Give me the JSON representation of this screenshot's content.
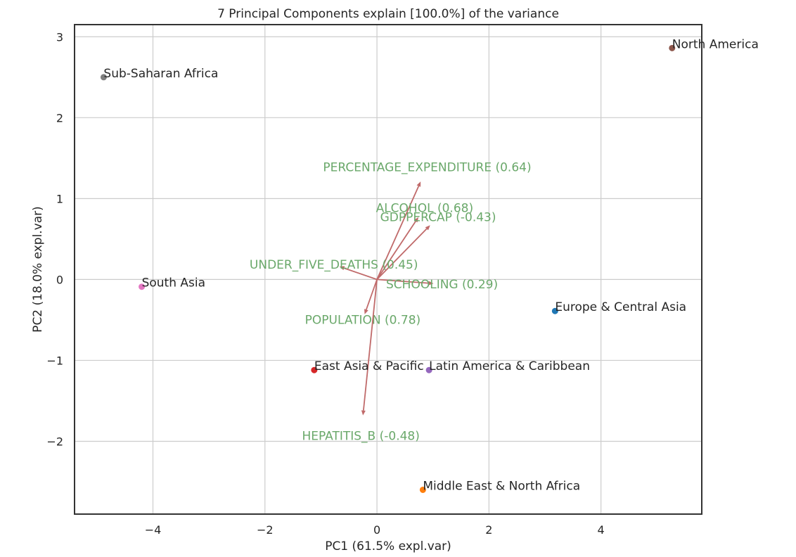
{
  "chart_data": {
    "type": "scatter",
    "title": "7 Principal Components explain [100.0%] of the variance",
    "xlabel": "PC1 (61.5% expl.var)",
    "ylabel": "PC2 (18.0% expl.var)",
    "xlim": [
      -5.4,
      5.8
    ],
    "ylim": [
      -2.9,
      3.15
    ],
    "xticks": [
      -4,
      -2,
      0,
      2,
      4
    ],
    "xtick_labels": [
      "−4",
      "−2",
      "0",
      "2",
      "4"
    ],
    "yticks": [
      -2,
      -1,
      0,
      1,
      2,
      3
    ],
    "ytick_labels": [
      "−2",
      "−1",
      "0",
      "1",
      "2",
      "3"
    ],
    "grid": true,
    "points": [
      {
        "label": "Sub-Saharan Africa",
        "x": -4.88,
        "y": 2.5,
        "color": "#7f7f7f"
      },
      {
        "label": "North America",
        "x": 5.27,
        "y": 2.86,
        "color": "#8c564b"
      },
      {
        "label": "South Asia",
        "x": -4.2,
        "y": -0.09,
        "color": "#e377c2"
      },
      {
        "label": "Europe & Central Asia",
        "x": 3.18,
        "y": -0.39,
        "color": "#1f77b4"
      },
      {
        "label": "East Asia & Pacific",
        "x": -1.12,
        "y": -1.12,
        "color": "#d62728"
      },
      {
        "label": "Latin America & Caribbean",
        "x": 0.93,
        "y": -1.12,
        "color": "#9467bd"
      },
      {
        "label": "Middle East & North Africa",
        "x": 0.82,
        "y": -2.6,
        "color": "#ff7f0e"
      }
    ],
    "loadings": [
      {
        "label": "PERCENTAGE_EXPENDITURE (0.64)",
        "x": 0.78,
        "y": 1.21
      },
      {
        "label": "ALCOHOL (0.68)",
        "x": 0.74,
        "y": 0.77
      },
      {
        "label": "GDPPERCAP (-0.43)",
        "x": 0.95,
        "y": 0.67
      },
      {
        "label": "UNDER_FIVE_DEATHS (0.45)",
        "x": -0.67,
        "y": 0.16
      },
      {
        "label": "SCHOOLING (0.29)",
        "x": 1.01,
        "y": -0.05
      },
      {
        "label": "POPULATION (0.78)",
        "x": -0.22,
        "y": -0.43
      },
      {
        "label": "HEPATITIS_B (-0.48)",
        "x": -0.25,
        "y": -1.68
      }
    ],
    "arrow_color": "#c06a6a",
    "loading_label_color": "#6aa86a"
  }
}
